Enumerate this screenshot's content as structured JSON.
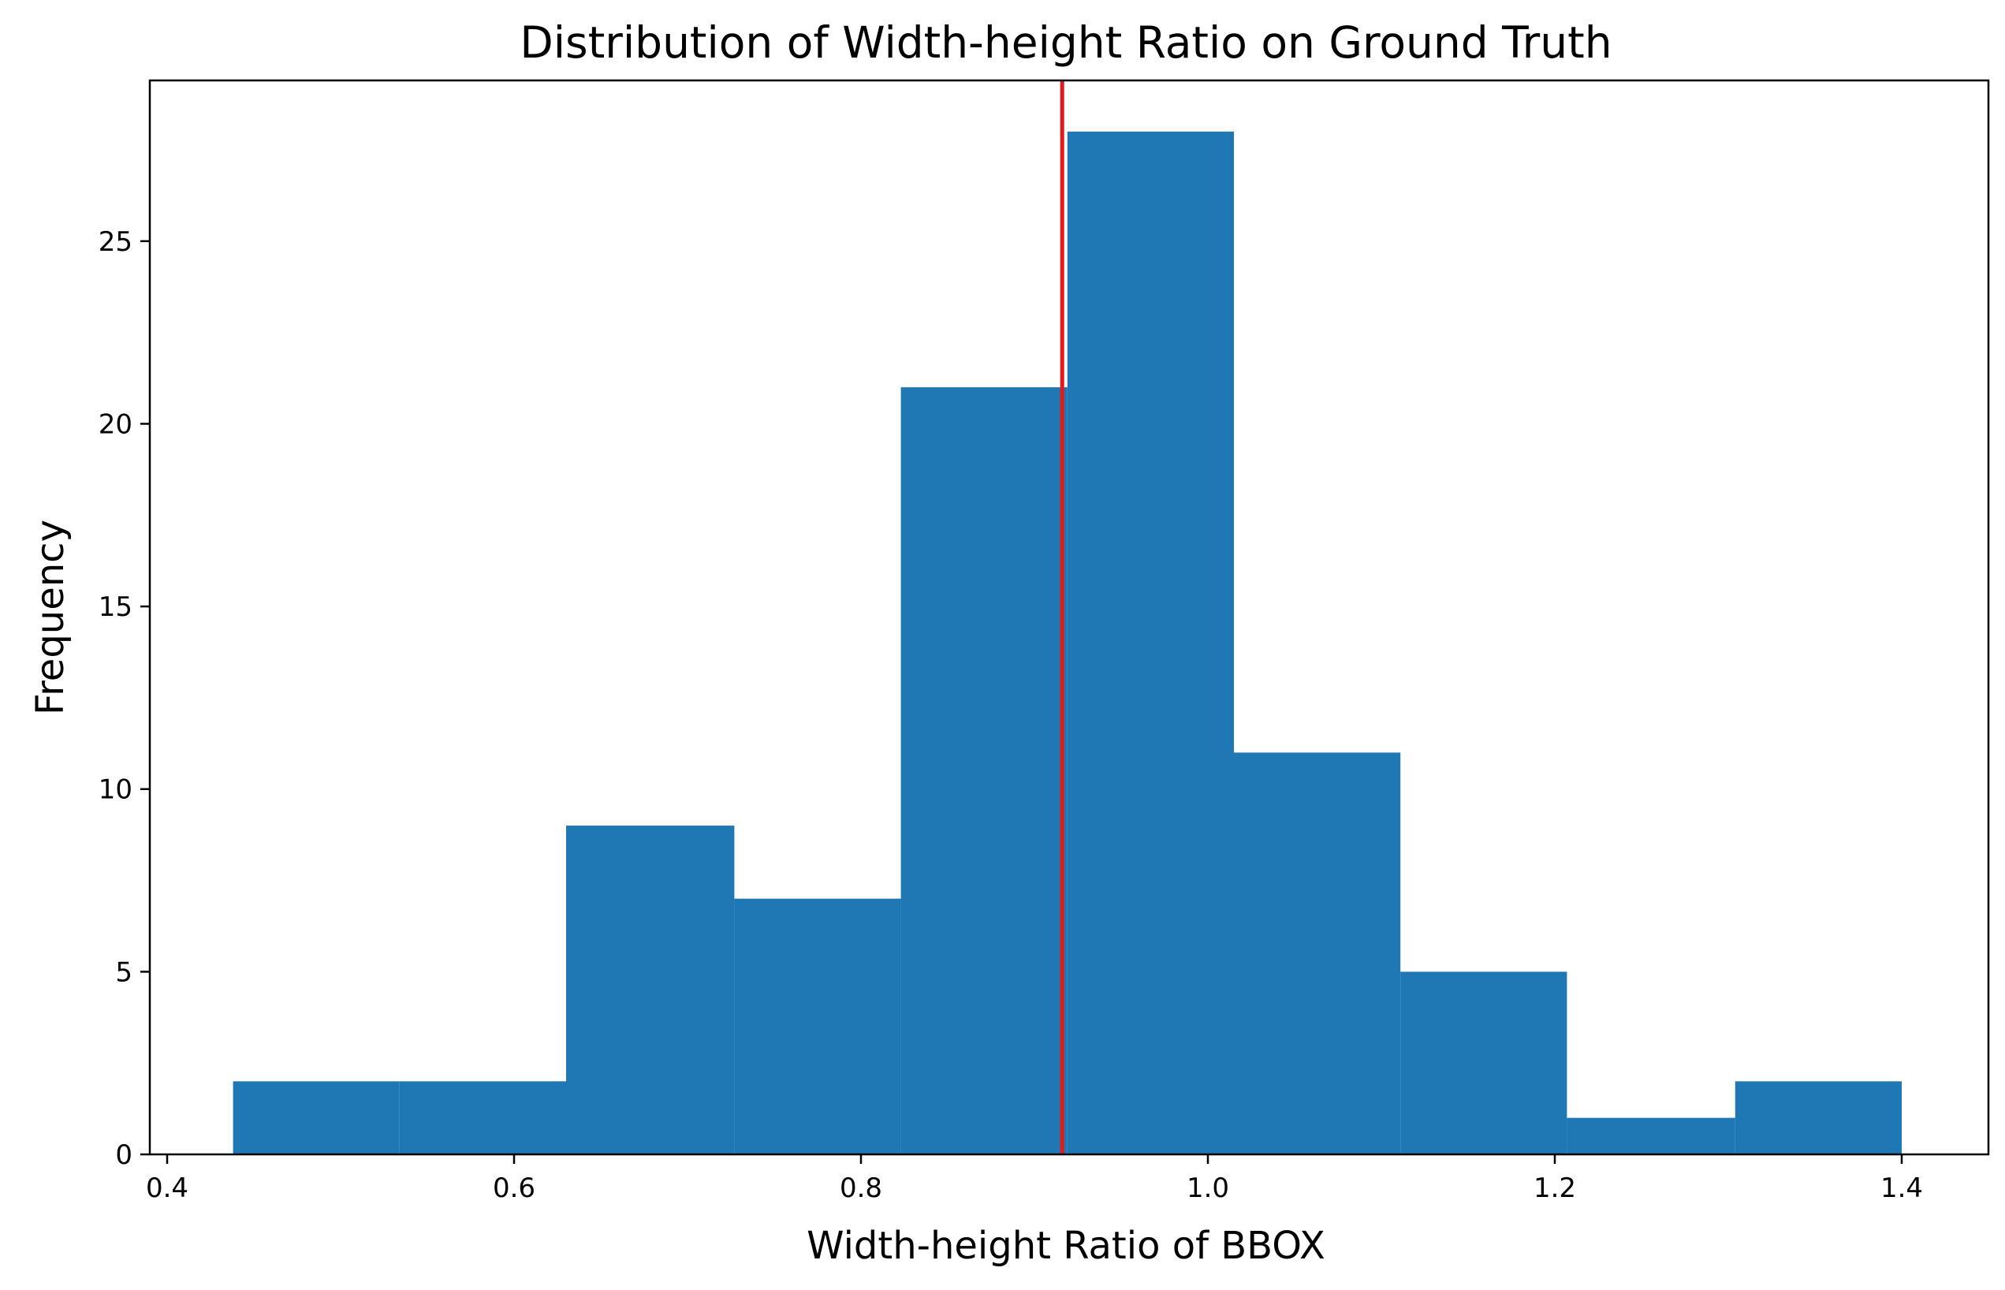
{
  "chart_data": {
    "type": "bar",
    "title": "Distribution of Width-height Ratio on Ground Truth",
    "xlabel": "Width-height Ratio of BBOX",
    "ylabel": "Frequency",
    "xlim": [
      0.39,
      1.45
    ],
    "ylim": [
      0,
      29.4
    ],
    "xticks": [
      0.4,
      0.6,
      0.8,
      1.0,
      1.2,
      1.4
    ],
    "xtick_labels": [
      "0.4",
      "0.6",
      "0.8",
      "1.0",
      "1.2",
      "1.4"
    ],
    "yticks": [
      0,
      5,
      10,
      15,
      20,
      25
    ],
    "ytick_labels": [
      "0",
      "5",
      "10",
      "15",
      "20",
      "25"
    ],
    "bin_edges": [
      0.438,
      0.534,
      0.63,
      0.727,
      0.823,
      0.919,
      1.015,
      1.111,
      1.207,
      1.304,
      1.4
    ],
    "values": [
      2,
      2,
      9,
      7,
      21,
      28,
      11,
      5,
      1,
      2
    ],
    "bar_color": "#1f77b4",
    "reference_line": {
      "x": 0.916,
      "color": "#e31a1c"
    },
    "grid": false
  }
}
